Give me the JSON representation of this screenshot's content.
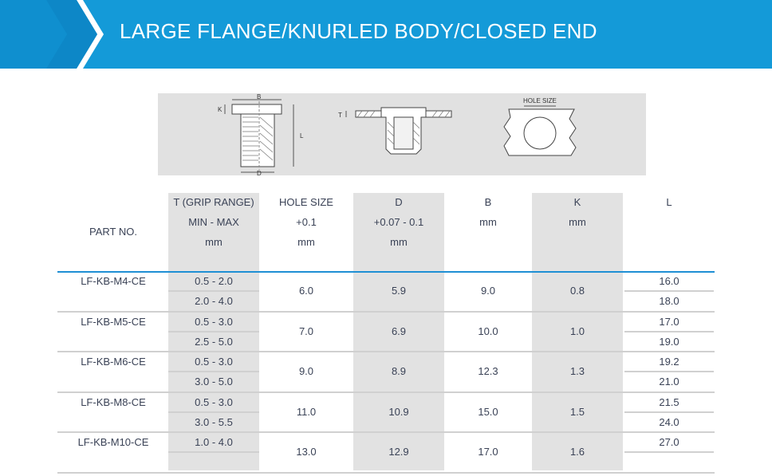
{
  "banner": {
    "title": "LARGE FLANGE/KNURLED BODY/CLOSED END",
    "colors": {
      "bar": "#149ad8",
      "chevron": "#0d87c7"
    }
  },
  "diagram": {
    "labels": {
      "b": "B",
      "k": "K",
      "l": "L",
      "d": "D",
      "t": "T",
      "hole_size": "HOLE SIZE"
    }
  },
  "table": {
    "headers": {
      "part_no": "PART NO.",
      "t": [
        "T (GRIP RANGE)",
        "MIN - MAX",
        "mm"
      ],
      "hole": [
        "HOLE SIZE",
        "+0.1",
        "mm"
      ],
      "d": [
        "D",
        "+0.07 - 0.1",
        "mm"
      ],
      "b": [
        "B",
        "mm"
      ],
      "k": [
        "K",
        "mm"
      ],
      "l": [
        "L"
      ]
    },
    "rows": [
      {
        "part": "LF-KB-M4-CE",
        "t": [
          "0.5 - 2.0",
          "2.0 - 4.0"
        ],
        "hole": "6.0",
        "d": "5.9",
        "b": "9.0",
        "k": "0.8",
        "l": [
          "16.0",
          "18.0"
        ]
      },
      {
        "part": "LF-KB-M5-CE",
        "t": [
          "0.5 - 3.0",
          "2.5 - 5.0"
        ],
        "hole": "7.0",
        "d": "6.9",
        "b": "10.0",
        "k": "1.0",
        "l": [
          "17.0",
          "19.0"
        ]
      },
      {
        "part": "LF-KB-M6-CE",
        "t": [
          "0.5 - 3.0",
          "3.0 - 5.0"
        ],
        "hole": "9.0",
        "d": "8.9",
        "b": "12.3",
        "k": "1.3",
        "l": [
          "19.2",
          "21.0"
        ]
      },
      {
        "part": "LF-KB-M8-CE",
        "t": [
          "0.5 - 3.0",
          "3.0 - 5.5"
        ],
        "hole": "11.0",
        "d": "10.9",
        "b": "15.0",
        "k": "1.5",
        "l": [
          "21.5",
          "24.0"
        ]
      },
      {
        "part": "LF-KB-M10-CE",
        "t": [
          "1.0 - 4.0",
          ""
        ],
        "hole": "13.0",
        "d": "12.9",
        "b": "17.0",
        "k": "1.6",
        "l": [
          "27.0",
          ""
        ]
      }
    ]
  }
}
